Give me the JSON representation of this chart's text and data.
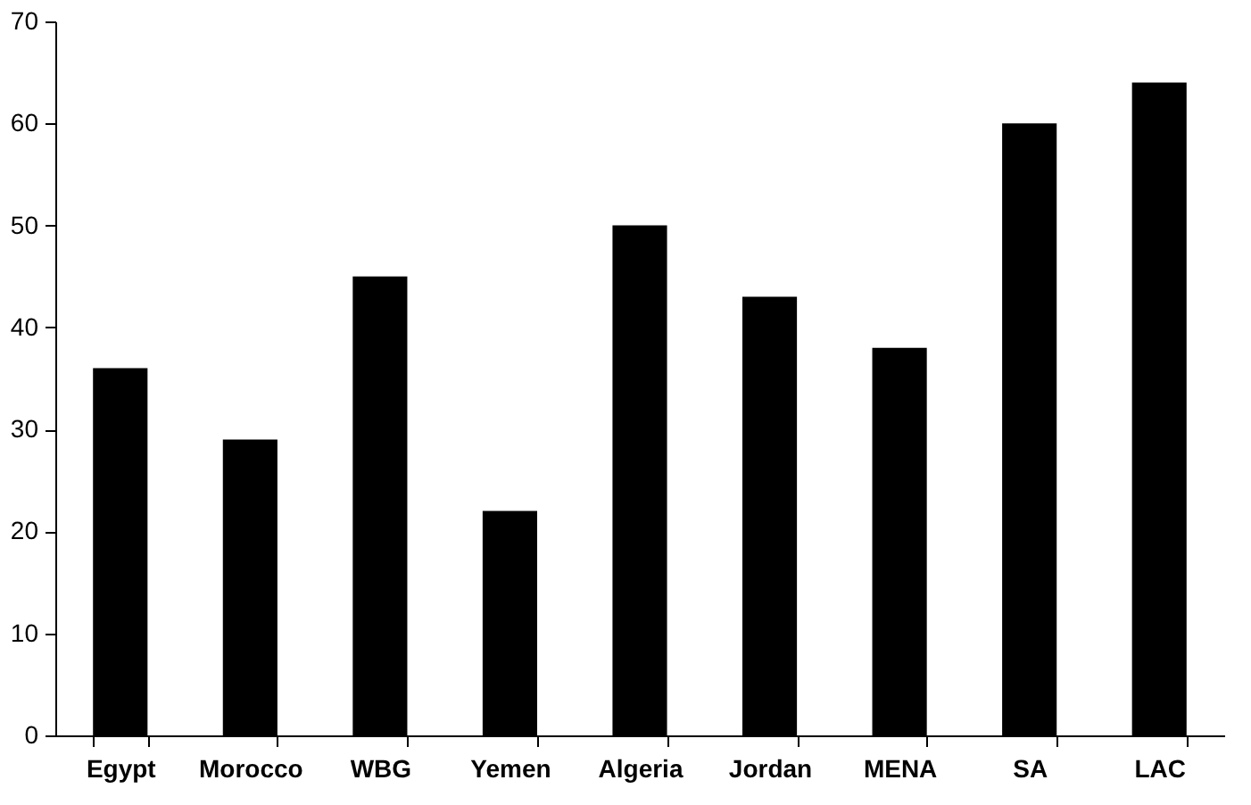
{
  "chart_data": {
    "type": "bar",
    "categories": [
      "Egypt",
      "Morocco",
      "WBG",
      "Yemen",
      "Algeria",
      "Jordan",
      "MENA",
      "SA",
      "LAC"
    ],
    "values": [
      36,
      29,
      45,
      22,
      50,
      43,
      38,
      60,
      64
    ],
    "color": "#000000",
    "ylim": [
      0,
      70
    ],
    "yticks": [
      0,
      10,
      20,
      30,
      40,
      50,
      60,
      70
    ],
    "grid": false
  }
}
